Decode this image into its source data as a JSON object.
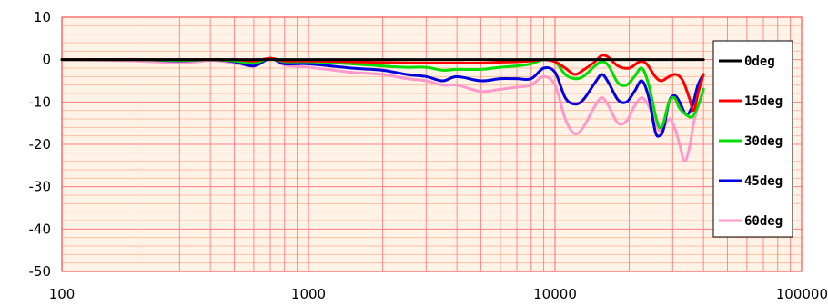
{
  "chart_data": {
    "type": "line",
    "title": "",
    "xlabel": "",
    "ylabel": "",
    "x_scale": "log",
    "xlim": [
      100,
      100000
    ],
    "ylim": [
      -50,
      10
    ],
    "x_ticks": [
      "100",
      "1000",
      "10000",
      "100000"
    ],
    "y_ticks": [
      "10",
      "0",
      "-10",
      "-20",
      "-30",
      "-40",
      "-50"
    ],
    "grid": true,
    "grid_color": "#ff8080",
    "minor_grid_color": "#ffc0a0",
    "plot_background": "#fff2e6",
    "legend_position": "right",
    "series": [
      {
        "name": "0deg",
        "color": "#000000",
        "points": [
          [
            100,
            0
          ],
          [
            200,
            0
          ],
          [
            500,
            0
          ],
          [
            1000,
            0
          ],
          [
            2000,
            0
          ],
          [
            5000,
            0
          ],
          [
            10000,
            0
          ],
          [
            20000,
            0
          ],
          [
            40000,
            0
          ]
        ]
      },
      {
        "name": "15deg",
        "color": "#ff0000",
        "points": [
          [
            100,
            0
          ],
          [
            200,
            0
          ],
          [
            300,
            0
          ],
          [
            400,
            0
          ],
          [
            500,
            0
          ],
          [
            600,
            -0.3
          ],
          [
            700,
            0.3
          ],
          [
            800,
            -0.3
          ],
          [
            1000,
            -0.3
          ],
          [
            1500,
            -0.5
          ],
          [
            2000,
            -0.7
          ],
          [
            3000,
            -0.8
          ],
          [
            4000,
            -0.8
          ],
          [
            5000,
            -0.8
          ],
          [
            6000,
            -0.6
          ],
          [
            7000,
            -0.5
          ],
          [
            8000,
            -0.3
          ],
          [
            9000,
            0
          ],
          [
            10000,
            -0.5
          ],
          [
            11000,
            -2.0
          ],
          [
            12000,
            -3.5
          ],
          [
            13000,
            -2.5
          ],
          [
            14500,
            -0.5
          ],
          [
            15500,
            1.0
          ],
          [
            16500,
            0.5
          ],
          [
            18000,
            -1.5
          ],
          [
            20000,
            -2.0
          ],
          [
            22000,
            -0.5
          ],
          [
            23500,
            -1.0
          ],
          [
            25500,
            -4.0
          ],
          [
            27000,
            -5.0
          ],
          [
            29000,
            -4.0
          ],
          [
            31000,
            -3.5
          ],
          [
            33000,
            -5.0
          ],
          [
            35000,
            -9.0
          ],
          [
            36500,
            -12.0
          ],
          [
            38000,
            -8.0
          ],
          [
            40000,
            -3.5
          ]
        ]
      },
      {
        "name": "30deg",
        "color": "#00dd00",
        "points": [
          [
            100,
            0
          ],
          [
            200,
            0
          ],
          [
            300,
            -0.2
          ],
          [
            400,
            0
          ],
          [
            500,
            -0.3
          ],
          [
            600,
            -0.8
          ],
          [
            700,
            0.3
          ],
          [
            800,
            -0.5
          ],
          [
            1000,
            -0.5
          ],
          [
            1500,
            -1.0
          ],
          [
            2000,
            -1.5
          ],
          [
            2500,
            -1.8
          ],
          [
            3000,
            -1.8
          ],
          [
            3500,
            -2.5
          ],
          [
            4000,
            -2.3
          ],
          [
            5000,
            -2.3
          ],
          [
            6000,
            -1.8
          ],
          [
            7000,
            -1.5
          ],
          [
            8000,
            -1.0
          ],
          [
            9000,
            0
          ],
          [
            10000,
            -0.5
          ],
          [
            11000,
            -3.5
          ],
          [
            12000,
            -4.5
          ],
          [
            13000,
            -4.0
          ],
          [
            14500,
            -1.5
          ],
          [
            15500,
            -0.5
          ],
          [
            16500,
            -1.5
          ],
          [
            18000,
            -5.5
          ],
          [
            19500,
            -6.0
          ],
          [
            21000,
            -4.0
          ],
          [
            22500,
            -2.0
          ],
          [
            24000,
            -6.0
          ],
          [
            25500,
            -13.0
          ],
          [
            26500,
            -16.0
          ],
          [
            27500,
            -15.0
          ],
          [
            29000,
            -10.0
          ],
          [
            30500,
            -9.0
          ],
          [
            32000,
            -11.5
          ],
          [
            34000,
            -13.0
          ],
          [
            36000,
            -13.5
          ],
          [
            38000,
            -11.0
          ],
          [
            40000,
            -7.0
          ]
        ]
      },
      {
        "name": "45deg",
        "color": "#0000dd",
        "points": [
          [
            100,
            0
          ],
          [
            200,
            0
          ],
          [
            300,
            -0.3
          ],
          [
            400,
            0
          ],
          [
            500,
            -0.5
          ],
          [
            600,
            -1.5
          ],
          [
            700,
            0.3
          ],
          [
            800,
            -1.0
          ],
          [
            1000,
            -1.0
          ],
          [
            1500,
            -2.0
          ],
          [
            2000,
            -2.5
          ],
          [
            2500,
            -3.5
          ],
          [
            3000,
            -4.0
          ],
          [
            3500,
            -5.0
          ],
          [
            4000,
            -4.0
          ],
          [
            5000,
            -5.0
          ],
          [
            6000,
            -4.5
          ],
          [
            7000,
            -4.5
          ],
          [
            8000,
            -4.5
          ],
          [
            9000,
            -2.0
          ],
          [
            10000,
            -3.0
          ],
          [
            11000,
            -9.0
          ],
          [
            12000,
            -10.5
          ],
          [
            13000,
            -9.5
          ],
          [
            14500,
            -5.5
          ],
          [
            15500,
            -3.5
          ],
          [
            16500,
            -5.5
          ],
          [
            18000,
            -9.5
          ],
          [
            19500,
            -10.0
          ],
          [
            21000,
            -7.5
          ],
          [
            22500,
            -5.0
          ],
          [
            24000,
            -9.0
          ],
          [
            25500,
            -17.0
          ],
          [
            26500,
            -18.0
          ],
          [
            27500,
            -16.5
          ],
          [
            29000,
            -10.0
          ],
          [
            30500,
            -8.5
          ],
          [
            32000,
            -10.0
          ],
          [
            34000,
            -13.0
          ],
          [
            36000,
            -11.0
          ],
          [
            38000,
            -6.0
          ],
          [
            40000,
            -3.5
          ]
        ]
      },
      {
        "name": "60deg",
        "color": "#ff99cc",
        "points": [
          [
            100,
            0
          ],
          [
            200,
            -0.3
          ],
          [
            300,
            -0.8
          ],
          [
            400,
            -0.2
          ],
          [
            500,
            -0.8
          ],
          [
            600,
            -1.5
          ],
          [
            700,
            0.2
          ],
          [
            800,
            -1.3
          ],
          [
            1000,
            -1.8
          ],
          [
            1500,
            -3.0
          ],
          [
            2000,
            -3.5
          ],
          [
            2500,
            -4.5
          ],
          [
            3000,
            -5.0
          ],
          [
            3500,
            -6.0
          ],
          [
            4000,
            -6.0
          ],
          [
            5000,
            -7.5
          ],
          [
            6000,
            -7.0
          ],
          [
            7000,
            -6.5
          ],
          [
            8000,
            -6.0
          ],
          [
            9000,
            -4.0
          ],
          [
            10000,
            -6.0
          ],
          [
            11000,
            -14.0
          ],
          [
            12000,
            -17.5
          ],
          [
            13000,
            -16.0
          ],
          [
            14500,
            -11.0
          ],
          [
            15500,
            -9.0
          ],
          [
            16500,
            -11.0
          ],
          [
            18000,
            -15.0
          ],
          [
            19500,
            -14.5
          ],
          [
            21000,
            -11.0
          ],
          [
            22500,
            -9.0
          ],
          [
            24000,
            -11.0
          ],
          [
            25500,
            -15.0
          ],
          [
            27000,
            -17.0
          ],
          [
            29000,
            -14.0
          ],
          [
            30500,
            -16.0
          ],
          [
            32000,
            -20.0
          ],
          [
            33500,
            -24.0
          ],
          [
            35000,
            -21.0
          ],
          [
            36500,
            -15.0
          ],
          [
            38000,
            -11.0
          ],
          [
            40000,
            -7.5
          ]
        ]
      }
    ]
  }
}
